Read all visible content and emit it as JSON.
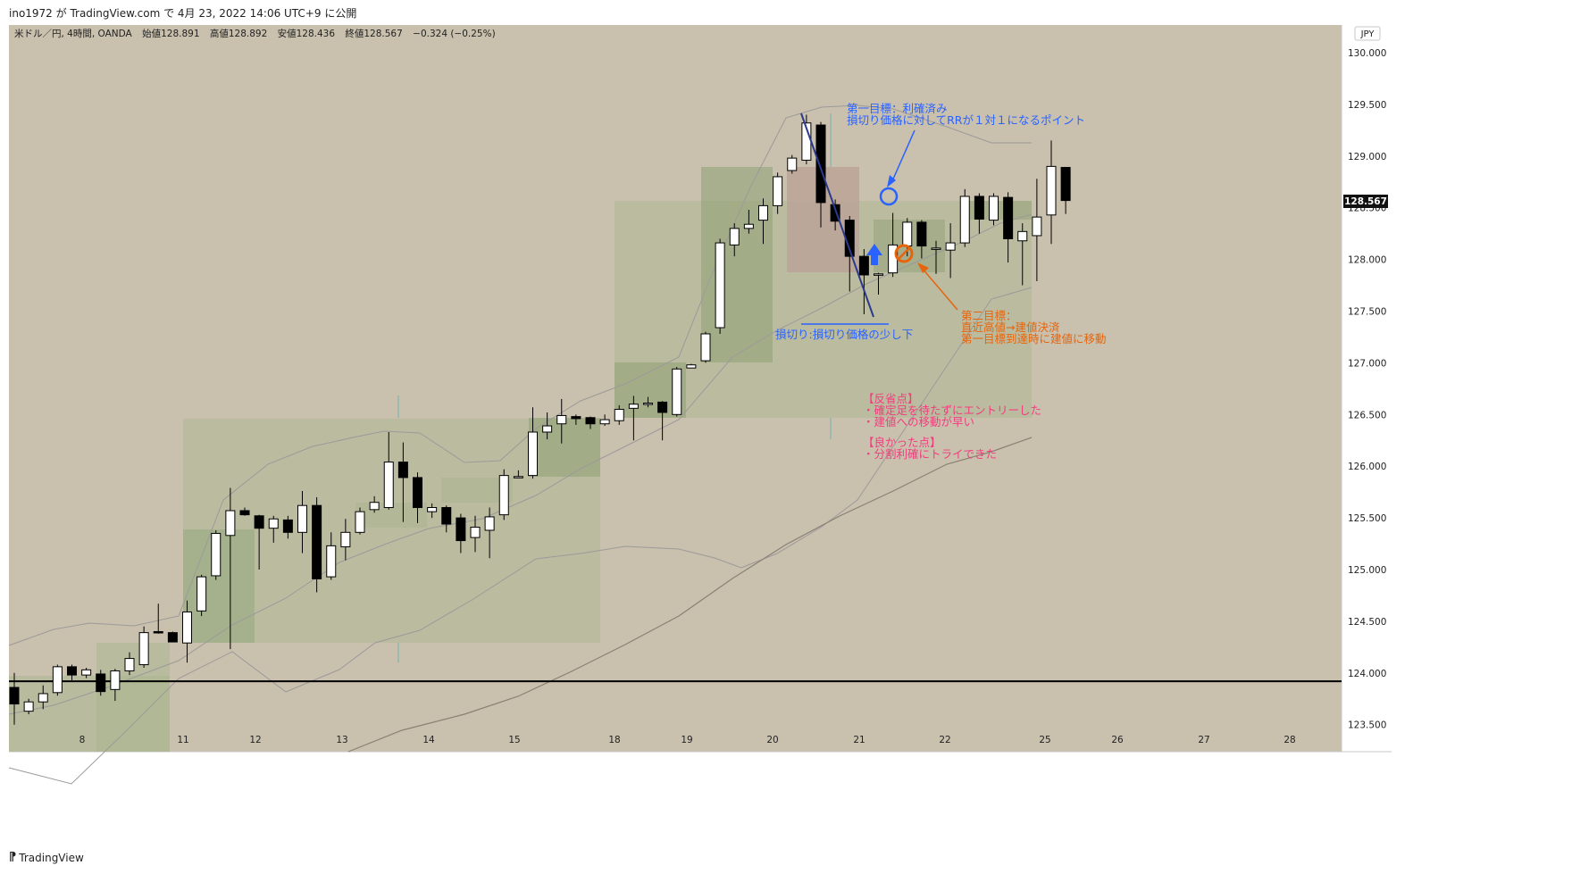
{
  "header": {
    "published": "ino1972 が TradingView.com で 4月 23, 2022 14:06 UTC+9 に公開"
  },
  "symbol": {
    "name": "米ドル／円, 4時間, OANDA",
    "open_label": "始値",
    "open": "128.891",
    "high_label": "高値",
    "high": "128.892",
    "low_label": "安値",
    "low": "128.436",
    "close_label": "終値",
    "close": "128.567",
    "change": "−0.324 (−0.25%)"
  },
  "currency": "JPY",
  "price_badge": "128.567",
  "footer": {
    "logo": "𝟭𝟳",
    "brand": "TradingView"
  },
  "colors": {
    "background": "#c9c0ad",
    "box": "#a9b68f",
    "box_dark": "#93a37a",
    "box_red": "#bba598",
    "bb": "#9c9a9a",
    "ma": "#8a8174",
    "blue_note": "#2962ff",
    "orange_note": "#e8640c",
    "pink_note": "#f23d7d",
    "level_line": "#000000"
  },
  "chart_data": {
    "type": "candlestick",
    "x_ticks": [
      "8",
      "11",
      "12",
      "13",
      "14",
      "15",
      "18",
      "19",
      "20",
      "21",
      "22",
      "25",
      "26",
      "27",
      "28"
    ],
    "y_ticks": [
      "130.000",
      "129.500",
      "129.000",
      "128.500",
      "128.000",
      "127.500",
      "127.000",
      "126.500",
      "126.000",
      "125.500",
      "125.000",
      "124.500",
      "124.000",
      "123.500"
    ],
    "ylim": [
      123.5,
      130.0
    ],
    "horizontal_level": 123.92,
    "candles": [
      [
        123.86,
        123.7,
        124.0,
        123.5
      ],
      [
        123.63,
        123.72,
        123.75,
        123.6
      ],
      [
        123.72,
        123.8,
        123.88,
        123.65
      ],
      [
        123.81,
        124.06,
        124.08,
        123.78
      ],
      [
        124.06,
        123.98,
        124.08,
        123.93
      ],
      [
        123.98,
        124.03,
        124.05,
        123.95
      ],
      [
        123.99,
        123.82,
        124.03,
        123.78
      ],
      [
        123.84,
        124.02,
        124.04,
        123.73
      ],
      [
        124.02,
        124.14,
        124.2,
        123.98
      ],
      [
        124.08,
        124.39,
        124.45,
        124.05
      ],
      [
        124.4,
        124.39,
        124.67,
        124.38
      ],
      [
        124.39,
        124.3,
        124.4,
        124.3
      ],
      [
        124.29,
        124.59,
        124.7,
        124.1
      ],
      [
        124.6,
        124.93,
        124.95,
        124.55
      ],
      [
        124.94,
        125.35,
        125.38,
        124.9
      ],
      [
        125.33,
        125.57,
        125.79,
        124.23
      ],
      [
        125.57,
        125.53,
        125.6,
        125.52
      ],
      [
        125.52,
        125.4,
        125.53,
        125.0
      ],
      [
        125.4,
        125.49,
        125.52,
        125.26
      ],
      [
        125.48,
        125.36,
        125.52,
        125.3
      ],
      [
        125.36,
        125.62,
        125.76,
        125.16
      ],
      [
        125.62,
        124.91,
        125.7,
        124.78
      ],
      [
        124.93,
        125.23,
        125.36,
        124.9
      ],
      [
        125.22,
        125.36,
        125.49,
        125.09
      ],
      [
        125.36,
        125.56,
        125.6,
        125.34
      ],
      [
        125.58,
        125.65,
        125.71,
        125.55
      ],
      [
        125.6,
        126.04,
        126.33,
        125.58
      ],
      [
        126.04,
        125.89,
        126.23,
        125.46
      ],
      [
        125.89,
        125.6,
        125.94,
        125.45
      ],
      [
        125.56,
        125.6,
        125.64,
        125.5
      ],
      [
        125.6,
        125.44,
        125.62,
        125.36
      ],
      [
        125.5,
        125.28,
        125.54,
        125.16
      ],
      [
        125.31,
        125.41,
        125.52,
        125.17
      ],
      [
        125.38,
        125.51,
        125.6,
        125.11
      ],
      [
        125.53,
        125.91,
        125.97,
        125.48
      ],
      [
        125.9,
        125.9,
        125.96,
        125.89
      ],
      [
        125.91,
        126.33,
        126.57,
        125.88
      ],
      [
        126.33,
        126.39,
        126.52,
        126.26
      ],
      [
        126.41,
        126.49,
        126.65,
        126.22
      ],
      [
        126.48,
        126.46,
        126.5,
        126.4
      ],
      [
        126.47,
        126.41,
        126.48,
        126.36
      ],
      [
        126.41,
        126.45,
        126.5,
        126.39
      ],
      [
        126.44,
        126.55,
        126.59,
        126.4
      ],
      [
        126.56,
        126.6,
        126.68,
        126.25
      ],
      [
        126.61,
        126.61,
        126.67,
        126.57
      ],
      [
        126.62,
        126.52,
        126.63,
        126.25
      ],
      [
        126.5,
        126.94,
        126.96,
        126.48
      ],
      [
        126.95,
        126.98,
        126.99,
        126.95
      ],
      [
        127.02,
        127.28,
        127.3,
        127.0
      ],
      [
        127.34,
        128.16,
        128.2,
        127.28
      ],
      [
        128.14,
        128.3,
        128.35,
        128.03
      ],
      [
        128.3,
        128.34,
        128.48,
        128.25
      ],
      [
        128.38,
        128.52,
        128.59,
        128.15
      ],
      [
        128.52,
        128.8,
        128.84,
        128.44
      ],
      [
        128.86,
        128.98,
        129.01,
        128.83
      ],
      [
        128.96,
        129.32,
        129.4,
        128.92
      ],
      [
        129.3,
        128.55,
        129.33,
        128.31
      ],
      [
        128.53,
        128.37,
        128.58,
        128.28
      ],
      [
        128.38,
        128.03,
        128.42,
        127.69
      ],
      [
        128.03,
        127.85,
        128.1,
        127.47
      ],
      [
        127.86,
        127.86,
        127.87,
        127.66
      ],
      [
        127.87,
        128.14,
        128.45,
        127.83
      ],
      [
        128.13,
        128.36,
        128.4,
        128.03
      ],
      [
        128.36,
        128.13,
        128.38,
        128.01
      ],
      [
        128.1,
        128.11,
        128.18,
        127.86
      ],
      [
        128.09,
        128.16,
        128.35,
        127.82
      ],
      [
        128.16,
        128.61,
        128.68,
        128.12
      ],
      [
        128.61,
        128.39,
        128.64,
        128.25
      ],
      [
        128.38,
        128.61,
        128.64,
        128.33
      ],
      [
        128.6,
        128.2,
        128.65,
        127.97
      ],
      [
        128.18,
        128.27,
        128.35,
        127.75
      ],
      [
        128.23,
        128.41,
        128.78,
        127.79
      ],
      [
        128.43,
        128.9,
        129.15,
        128.15
      ],
      [
        128.89,
        128.57,
        128.89,
        128.44
      ]
    ]
  },
  "annotations": {
    "target1_line1": "第一目標：利確済み",
    "target1_line2": "損切り価格に対してRRが１対１になるポイント",
    "stoploss": "損切り:損切り価格の少し下",
    "target2_line1": "第二目標：",
    "target2_line2": "直近高値→建値決済",
    "target2_line3": "第一目標到達時に建値に移動",
    "review_title": "【反省点】",
    "review_item1": "・確定足を待たずにエントリーした",
    "review_item2": "・建値への移動が早い",
    "good_title": "【良かった点】",
    "good_item1": "・分割利確にトライできた"
  }
}
